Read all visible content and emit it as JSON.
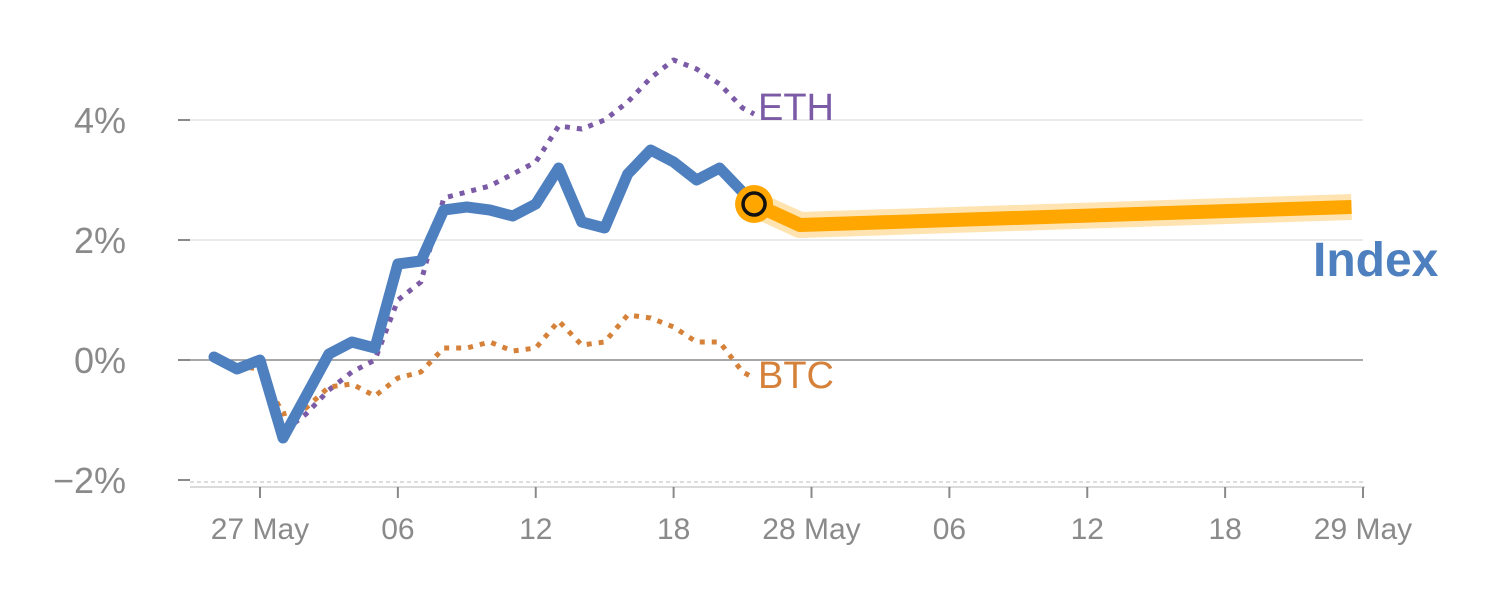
{
  "chart_data": {
    "type": "line",
    "ylim": [
      -2,
      5
    ],
    "y_ticks": [
      {
        "value": -2,
        "label": "−2%"
      },
      {
        "value": 0,
        "label": "0%"
      },
      {
        "value": 2,
        "label": "2%"
      },
      {
        "value": 4,
        "label": "4%"
      }
    ],
    "x_ticks": [
      {
        "hours": 24,
        "label": "27 May"
      },
      {
        "hours": 30,
        "label": "06"
      },
      {
        "hours": 36,
        "label": "12"
      },
      {
        "hours": 42,
        "label": "18"
      },
      {
        "hours": 48,
        "label": "28 May"
      },
      {
        "hours": 54,
        "label": "06"
      },
      {
        "hours": 60,
        "label": "12"
      },
      {
        "hours": 66,
        "label": "18"
      },
      {
        "hours": 72,
        "label": "29 May"
      }
    ],
    "series": [
      {
        "name": "ETH",
        "color": "#7b5aa6",
        "style": "dotted",
        "points": [
          [
            22.0,
            0.05
          ],
          [
            23.0,
            -0.1
          ],
          [
            24.0,
            -0.1
          ],
          [
            25.0,
            -1.2
          ],
          [
            26.0,
            -0.9
          ],
          [
            27.0,
            -0.5
          ],
          [
            28.0,
            -0.2
          ],
          [
            29.0,
            0.0
          ],
          [
            30.0,
            1.0
          ],
          [
            31.0,
            1.3
          ],
          [
            32.0,
            2.7
          ],
          [
            33.0,
            2.8
          ],
          [
            34.0,
            2.9
          ],
          [
            35.0,
            3.1
          ],
          [
            36.0,
            3.3
          ],
          [
            37.0,
            3.9
          ],
          [
            38.0,
            3.85
          ],
          [
            39.0,
            4.0
          ],
          [
            40.0,
            4.3
          ],
          [
            41.0,
            4.7
          ],
          [
            42.0,
            5.0
          ],
          [
            43.0,
            4.85
          ],
          [
            44.0,
            4.6
          ],
          [
            45.0,
            4.2
          ],
          [
            45.5,
            4.1
          ]
        ]
      },
      {
        "name": "BTC",
        "color": "#d5813a",
        "style": "dotted",
        "points": [
          [
            22.0,
            0.0
          ],
          [
            23.0,
            -0.1
          ],
          [
            24.0,
            -0.15
          ],
          [
            25.0,
            -0.9
          ],
          [
            26.0,
            -0.8
          ],
          [
            27.0,
            -0.45
          ],
          [
            28.0,
            -0.4
          ],
          [
            29.0,
            -0.6
          ],
          [
            30.0,
            -0.3
          ],
          [
            31.0,
            -0.2
          ],
          [
            32.0,
            0.2
          ],
          [
            33.0,
            0.2
          ],
          [
            34.0,
            0.3
          ],
          [
            35.0,
            0.15
          ],
          [
            36.0,
            0.2
          ],
          [
            37.0,
            0.65
          ],
          [
            38.0,
            0.25
          ],
          [
            39.0,
            0.3
          ],
          [
            40.0,
            0.75
          ],
          [
            41.0,
            0.7
          ],
          [
            42.0,
            0.55
          ],
          [
            43.0,
            0.3
          ],
          [
            44.0,
            0.3
          ],
          [
            45.0,
            -0.2
          ],
          [
            45.5,
            -0.3
          ]
        ]
      },
      {
        "name": "Index",
        "color": "#4e7fbf",
        "style": "solid",
        "points": [
          [
            22.0,
            0.05
          ],
          [
            23.0,
            -0.15
          ],
          [
            24.0,
            0.0
          ],
          [
            25.0,
            -1.3
          ],
          [
            26.0,
            -0.6
          ],
          [
            27.0,
            0.1
          ],
          [
            28.0,
            0.3
          ],
          [
            29.0,
            0.2
          ],
          [
            30.0,
            1.6
          ],
          [
            31.0,
            1.65
          ],
          [
            32.0,
            2.5
          ],
          [
            33.0,
            2.55
          ],
          [
            34.0,
            2.5
          ],
          [
            35.0,
            2.4
          ],
          [
            36.0,
            2.6
          ],
          [
            37.0,
            3.2
          ],
          [
            38.0,
            2.3
          ],
          [
            39.0,
            2.2
          ],
          [
            40.0,
            3.1
          ],
          [
            41.0,
            3.5
          ],
          [
            42.0,
            3.3
          ],
          [
            43.0,
            3.0
          ],
          [
            44.0,
            3.2
          ],
          [
            45.0,
            2.8
          ],
          [
            45.5,
            2.6
          ]
        ]
      }
    ],
    "forecast": {
      "color": "#ffa600",
      "points": [
        [
          45.5,
          2.6
        ],
        [
          47.5,
          2.25
        ],
        [
          71.5,
          2.55
        ]
      ]
    },
    "marker": {
      "hours": 45.5,
      "value": 2.6
    },
    "labels": {
      "eth": "ETH",
      "btc": "BTC",
      "index": "Index"
    }
  }
}
